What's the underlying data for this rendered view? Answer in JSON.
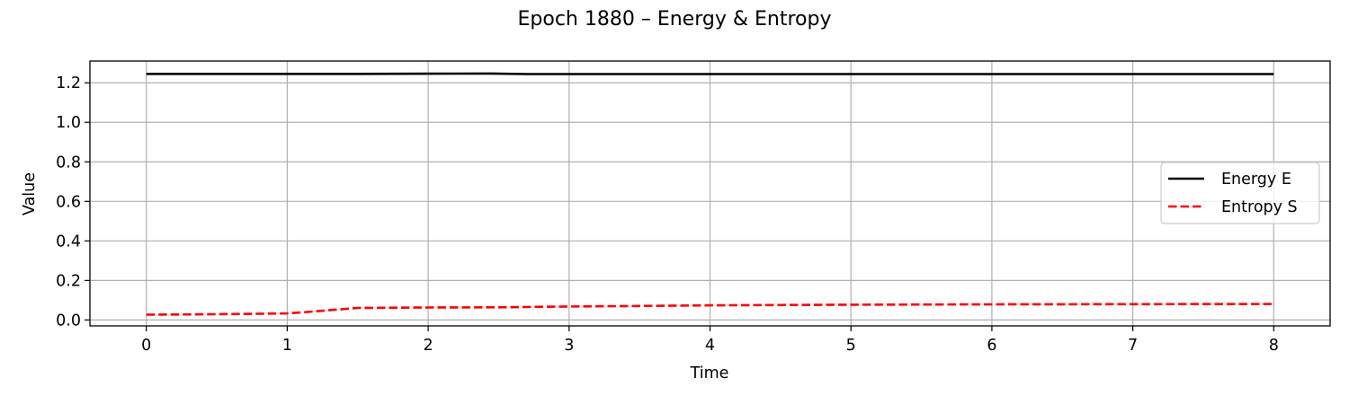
{
  "chart_data": {
    "type": "line",
    "title": "Epoch 1880 – Energy & Entropy",
    "xlabel": "Time",
    "ylabel": "Value",
    "xlim": [
      -0.4,
      8.4
    ],
    "ylim": [
      -0.03,
      1.31
    ],
    "xticks": [
      0,
      1,
      2,
      3,
      4,
      5,
      6,
      7,
      8
    ],
    "xtick_labels": [
      "0",
      "1",
      "2",
      "3",
      "4",
      "5",
      "6",
      "7",
      "8"
    ],
    "yticks": [
      0.0,
      0.2,
      0.4,
      0.6,
      0.8,
      1.0,
      1.2
    ],
    "ytick_labels": [
      "0.0",
      "0.2",
      "0.4",
      "0.6",
      "0.8",
      "1.0",
      "1.2"
    ],
    "grid": true,
    "legend_position": "right",
    "series": [
      {
        "name": "Energy E",
        "color": "#000000",
        "style": "solid",
        "x": [
          0,
          0.5,
          1,
          1.5,
          2,
          2.45,
          2.7,
          3,
          4,
          5,
          6,
          7,
          8
        ],
        "y": [
          1.245,
          1.245,
          1.245,
          1.245,
          1.246,
          1.247,
          1.244,
          1.244,
          1.244,
          1.244,
          1.244,
          1.244,
          1.244
        ]
      },
      {
        "name": "Entropy S",
        "color": "#ff0000",
        "style": "dashed",
        "x": [
          0,
          0.5,
          1,
          1.1,
          1.5,
          2,
          2.5,
          3,
          3.5,
          4,
          5,
          6,
          7,
          8
        ],
        "y": [
          0.027,
          0.029,
          0.033,
          0.038,
          0.061,
          0.063,
          0.064,
          0.068,
          0.071,
          0.074,
          0.077,
          0.079,
          0.08,
          0.081
        ]
      }
    ]
  }
}
